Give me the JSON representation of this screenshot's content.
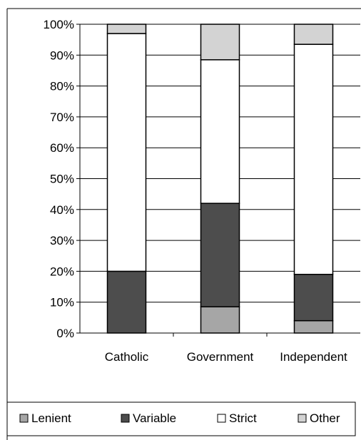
{
  "chart_data": {
    "type": "bar",
    "stacked": true,
    "percent": true,
    "categories": [
      "Catholic",
      "Government",
      "Independent"
    ],
    "series": [
      {
        "name": "Lenient",
        "values": [
          0,
          8.5,
          4
        ],
        "color": "#a6a6a6"
      },
      {
        "name": "Variable",
        "values": [
          20,
          33.5,
          15
        ],
        "color": "#4d4d4d"
      },
      {
        "name": "Strict",
        "values": [
          77,
          46.5,
          74.5
        ],
        "color": "#ffffff"
      },
      {
        "name": "Other",
        "values": [
          3,
          11.5,
          6.5
        ],
        "color": "#d3d3d3"
      }
    ],
    "yticks": [
      "0%",
      "10%",
      "20%",
      "30%",
      "40%",
      "50%",
      "60%",
      "70%",
      "80%",
      "90%",
      "100%"
    ],
    "ylim": [
      0,
      100
    ],
    "grid": true,
    "legend_position": "bottom",
    "legend": [
      "Lenient",
      "Variable",
      "Strict",
      "Other"
    ]
  }
}
